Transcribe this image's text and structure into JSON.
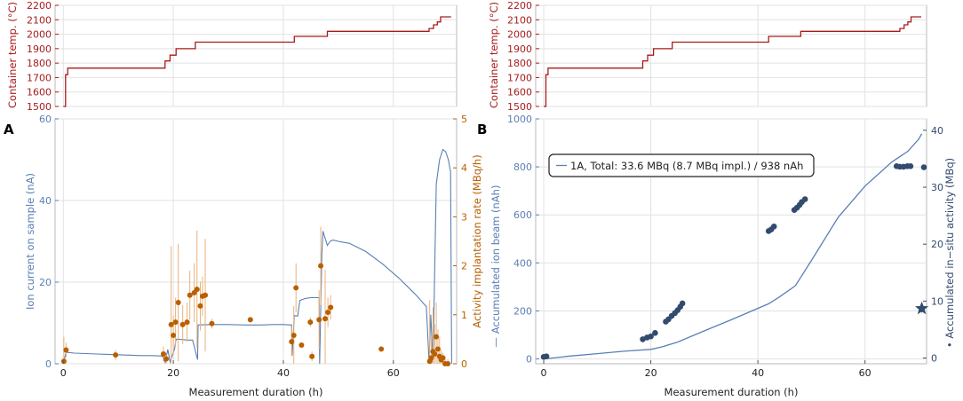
{
  "panels": {
    "a": "A",
    "b": "B"
  },
  "colors": {
    "red": "#a81b1b",
    "blue": "#5a7fb5",
    "orange": "#b85f00",
    "orangeErr": "#e8b27a",
    "dot": "#324b6e",
    "grid": "#e2e2e2",
    "frame": "#b9b9b9"
  },
  "chart_data": [
    {
      "id": "temp-a",
      "type": "line",
      "panel": "A",
      "ylabel": "Container temp. (°C)",
      "ylim": [
        1500,
        2200
      ],
      "xlim": [
        -1.5,
        71.5
      ],
      "yticks": [
        1500,
        1600,
        1700,
        1800,
        1900,
        2000,
        2100,
        2200
      ],
      "series": [
        {
          "name": "Container temp.",
          "x": [
            0,
            0.4,
            0.4,
            0.8,
            0.8,
            18.5,
            18.5,
            19.4,
            19.4,
            20.5,
            20.5,
            24.0,
            24.0,
            42.0,
            42.0,
            48.0,
            48.0,
            66.5,
            66.5,
            67.3,
            67.3,
            68.0,
            68.0,
            68.6,
            68.6,
            70.5
          ],
          "y": [
            1500,
            1500,
            1720,
            1720,
            1765,
            1765,
            1815,
            1815,
            1855,
            1855,
            1900,
            1900,
            1945,
            1945,
            1985,
            1985,
            2020,
            2020,
            2040,
            2040,
            2065,
            2065,
            2085,
            2085,
            2120,
            2120
          ]
        }
      ]
    },
    {
      "id": "temp-b",
      "type": "line",
      "panel": "B",
      "ylabel": "Container temp. (°C)",
      "ylim": [
        1500,
        2200
      ],
      "xlim": [
        -1.5,
        71.5
      ],
      "yticks": [
        1500,
        1600,
        1700,
        1800,
        1900,
        2000,
        2100,
        2200
      ],
      "series": [
        {
          "name": "Container temp.",
          "x": [
            0,
            0.4,
            0.4,
            0.8,
            0.8,
            18.5,
            18.5,
            19.4,
            19.4,
            20.5,
            20.5,
            24.0,
            24.0,
            42.0,
            42.0,
            48.0,
            48.0,
            66.5,
            66.5,
            67.3,
            67.3,
            68.0,
            68.0,
            68.6,
            68.6,
            70.5
          ],
          "y": [
            1500,
            1500,
            1720,
            1720,
            1765,
            1765,
            1815,
            1815,
            1855,
            1855,
            1900,
            1900,
            1945,
            1945,
            1985,
            1985,
            2020,
            2020,
            2040,
            2040,
            2065,
            2065,
            2085,
            2085,
            2120,
            2120
          ]
        }
      ]
    },
    {
      "id": "ion-a",
      "type": "line+scatter",
      "panel": "A",
      "xlabel": "Measurement duration (h)",
      "ylabel": "Ion current on sample (nA)",
      "y2label": "Activity implantation rate (MBq/h)",
      "xlim": [
        -1.5,
        71.5
      ],
      "xticks": [
        0,
        20,
        40,
        60
      ],
      "ylim": [
        0,
        60
      ],
      "yticks": [
        0,
        20,
        40,
        60
      ],
      "y2lim": [
        0,
        5
      ],
      "y2ticks": [
        0,
        1,
        2,
        3,
        4,
        5
      ],
      "current": {
        "x": [
          0,
          0.5,
          2,
          4,
          6,
          8,
          10,
          12,
          14,
          16,
          18,
          18.5,
          19,
          19.4,
          20.2,
          20.5,
          21,
          22,
          22.5,
          23.5,
          24.4,
          24.5,
          27,
          30,
          33,
          36,
          38,
          40,
          41.5,
          41.6,
          42,
          42.6,
          43,
          44,
          45,
          46.5,
          46.6,
          47,
          47.2,
          48,
          48.5,
          49,
          50,
          52,
          55,
          58,
          61,
          64,
          66,
          66.5,
          66.8,
          67.2,
          67.8,
          68,
          68.4,
          69,
          69.5,
          70,
          70.4,
          70.6
        ],
        "y": [
          0,
          2.8,
          2.6,
          2.5,
          2.4,
          2.3,
          2.2,
          2.1,
          2.0,
          2.0,
          1.9,
          0.4,
          3.5,
          0.5,
          3.5,
          6.0,
          6.0,
          5.9,
          5.8,
          5.8,
          1.0,
          9.5,
          9.6,
          9.6,
          9.5,
          9.5,
          9.6,
          9.6,
          9.5,
          2.0,
          11.8,
          11.7,
          15.5,
          16.0,
          16.2,
          16.2,
          0,
          27.0,
          32.5,
          29.0,
          30.0,
          30.3,
          30.0,
          29.5,
          27.5,
          24.5,
          21.0,
          17.0,
          14.0,
          0.5,
          12.0,
          0.3,
          44.0,
          46.0,
          50.0,
          52.5,
          52.0,
          50.0,
          47.0,
          0
        ]
      },
      "rate": {
        "x": [
          0.1,
          0.5,
          9.5,
          18.2,
          18.7,
          19.6,
          20.0,
          20.4,
          20.9,
          21.7,
          22.5,
          23.0,
          23.8,
          24.3,
          24.9,
          25.3,
          25.8,
          27.0,
          34.0,
          41.5,
          41.9,
          42.3,
          43.3,
          44.9,
          45.2,
          46.5,
          46.8,
          47.6,
          48.1,
          48.6,
          57.8,
          66.6,
          66.9,
          67.2,
          67.5,
          67.8,
          68.1,
          68.4,
          68.7,
          69.0,
          69.4,
          69.9
        ],
        "y": [
          0.05,
          0.28,
          0.18,
          0.2,
          0.1,
          0.8,
          0.58,
          0.85,
          1.25,
          0.8,
          0.85,
          1.4,
          1.45,
          1.52,
          1.18,
          1.38,
          1.4,
          0.82,
          0.9,
          0.45,
          0.58,
          1.55,
          0.38,
          0.85,
          0.15,
          0.9,
          2.0,
          0.92,
          1.05,
          1.15,
          0.3,
          0.05,
          0.12,
          0.25,
          0.2,
          0.55,
          0.3,
          0.15,
          0.08,
          0.12,
          0.0,
          0.0
        ],
        "err": [
          0.5,
          0.15,
          0.1,
          0.15,
          0.1,
          1.6,
          0.4,
          0.5,
          1.2,
          0.4,
          0.4,
          0.5,
          0.6,
          1.2,
          0.5,
          0.4,
          1.15,
          0.1,
          0.05,
          0.3,
          0.6,
          0.5,
          0.05,
          0.1,
          0.1,
          0.6,
          0.8,
          1.0,
          0.3,
          0.25,
          0.05,
          1.25,
          0.4,
          0.9,
          0.6,
          0.7,
          0.4,
          0.4,
          0.2,
          0.1,
          0.1,
          0.1
        ]
      }
    },
    {
      "id": "acc-b",
      "type": "line+scatter",
      "panel": "B",
      "xlabel": "Measurement duration (h)",
      "ylabel": "— Accumulated ion beam (nAh)",
      "y2label": "• Accumulated in−situ activity (MBq)",
      "xlim": [
        -1.5,
        71.5
      ],
      "xticks": [
        0,
        20,
        40,
        60
      ],
      "ylim": [
        -20,
        1000
      ],
      "yticks": [
        0,
        200,
        400,
        600,
        800,
        1000
      ],
      "y2lim": [
        -1,
        42
      ],
      "y2ticks": [
        0,
        10,
        20,
        30,
        40
      ],
      "legend": "1A, Total: 33.6 MBq (8.7 MBq impl.) / 938 nAh",
      "beam": {
        "x": [
          0,
          5,
          10,
          15,
          20,
          22,
          25,
          30,
          35,
          42,
          44,
          47,
          50,
          55,
          60,
          65,
          68,
          70,
          70.6
        ],
        "y": [
          0,
          12,
          22,
          32,
          40,
          50,
          70,
          117,
          163,
          230,
          258,
          305,
          410,
          590,
          720,
          820,
          865,
          915,
          938
        ]
      },
      "activity": {
        "x": [
          0,
          0.5,
          18.5,
          19.3,
          20.0,
          20.8,
          22.8,
          23.3,
          23.9,
          24.5,
          25.0,
          25.5,
          25.9,
          42.0,
          42.5,
          43.0,
          46.8,
          47.3,
          47.8,
          48.2,
          48.8,
          65.9,
          66.5,
          67.2,
          67.9,
          68.5,
          71.0
        ],
        "y": [
          0.2,
          0.3,
          3.3,
          3.6,
          3.8,
          4.4,
          6.4,
          6.8,
          7.4,
          7.9,
          8.4,
          9.0,
          9.6,
          22.3,
          22.6,
          23.1,
          26.0,
          26.4,
          26.9,
          27.4,
          27.9,
          33.7,
          33.6,
          33.6,
          33.7,
          33.7,
          33.5
        ]
      },
      "star": {
        "x": 70.6,
        "y": 8.7,
        "err": 0.7
      }
    }
  ]
}
